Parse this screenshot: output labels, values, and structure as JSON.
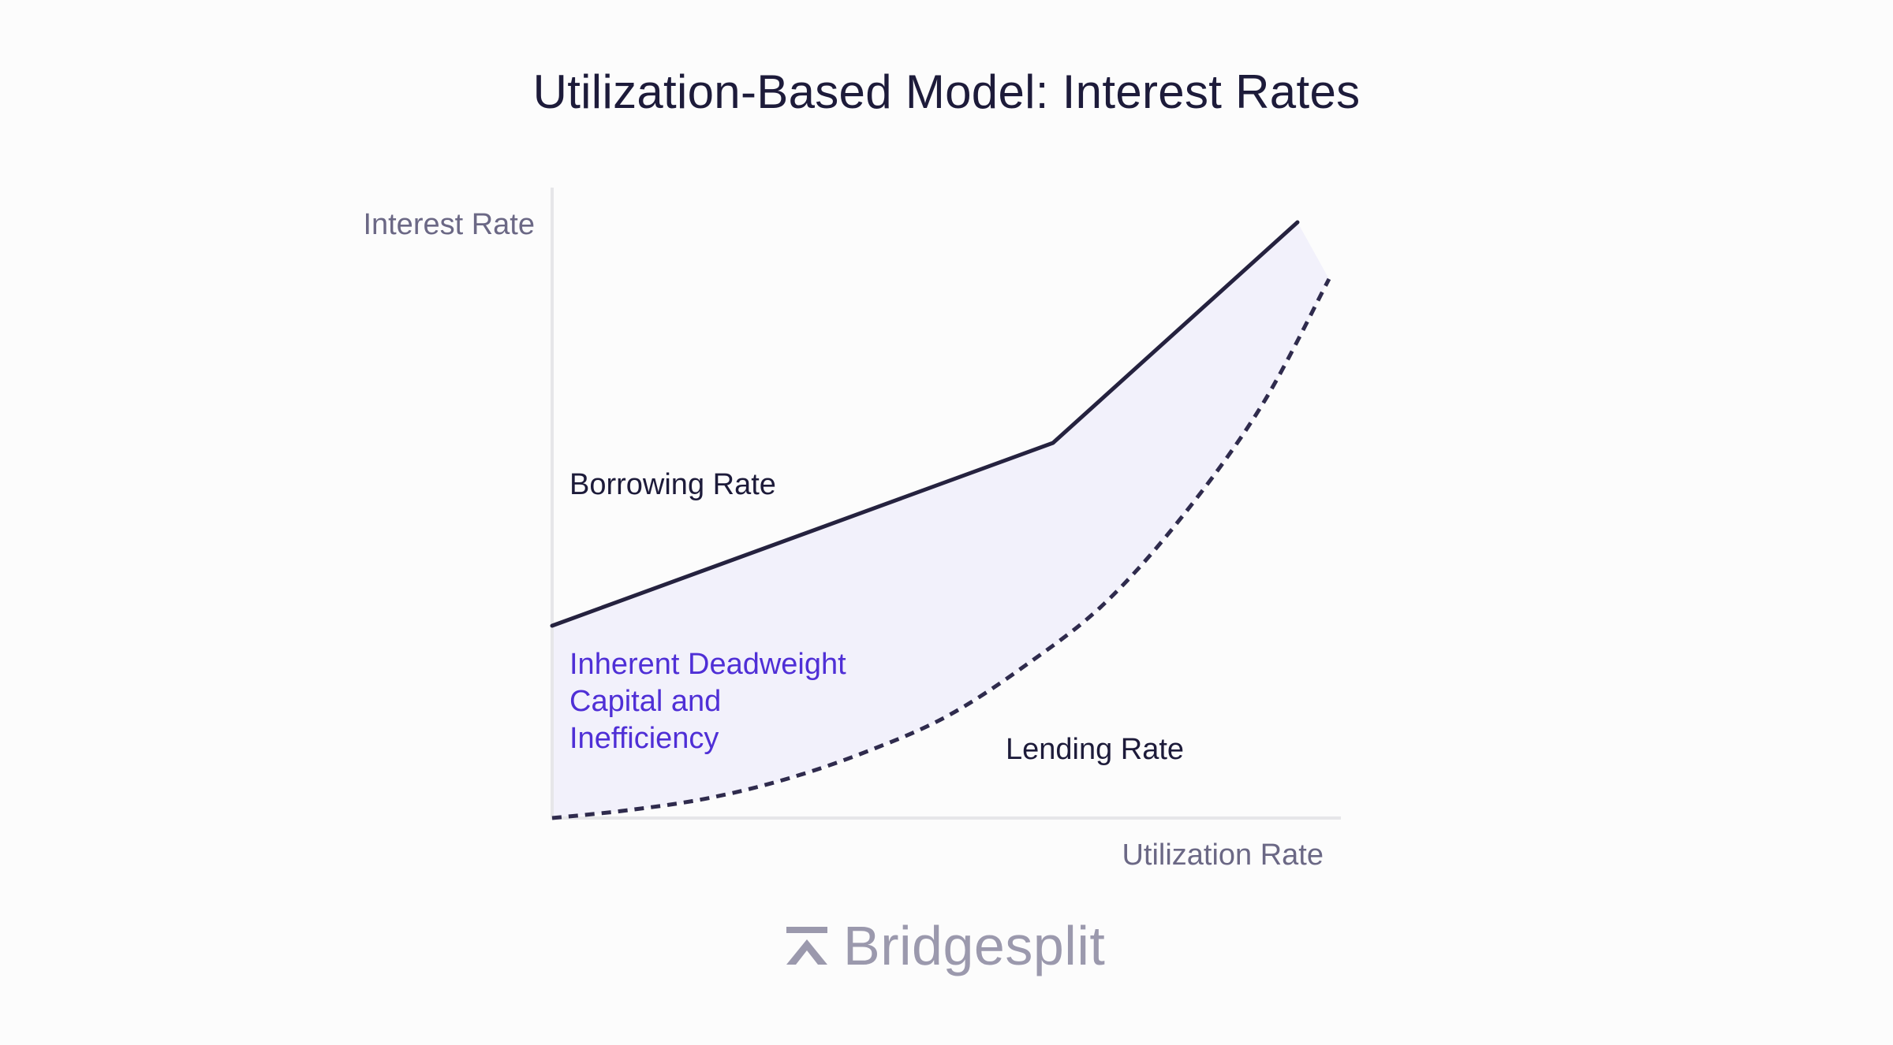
{
  "title": "Utilization-Based Model: Interest Rates",
  "brand": {
    "name": "Bridgesplit",
    "logo_icon": "bridgesplit-logo-icon"
  },
  "colors": {
    "background": "#fcfcfc",
    "title": "#1d1b3a",
    "borrowing_line": "#25223f",
    "lending_line": "#2f2b4d",
    "deadweight_fill": "#f2f1fb",
    "deadweight_label": "#4f2fd6",
    "axis_label": "#6b6885",
    "axis_line": "#e6e6e9",
    "brand": "#9b99ad"
  },
  "chart_data": {
    "type": "line",
    "title": "Utilization-Based Model: Interest Rates",
    "xlabel": "Utilization Rate",
    "ylabel": "Interest Rate",
    "xlim": [
      0,
      100
    ],
    "ylim": [
      0,
      100
    ],
    "grid": false,
    "legend": "none",
    "series": [
      {
        "name": "Borrowing Rate",
        "style": "solid",
        "x": [
          0,
          63.5,
          94.5
        ],
        "y": [
          30.5,
          59.5,
          94.5
        ]
      },
      {
        "name": "Lending Rate",
        "style": "dashed",
        "x": [
          0,
          10,
          20,
          30,
          40,
          50,
          60,
          70,
          80,
          90,
          98.5
        ],
        "y": [
          0,
          1.3,
          3.2,
          6.3,
          10.6,
          16.1,
          24.2,
          34.0,
          48.0,
          65.5,
          85.5
        ]
      }
    ],
    "annotations": [
      {
        "text": "Borrowing Rate",
        "anchor": "above-borrowing-line"
      },
      {
        "text": "Lending Rate",
        "anchor": "below-lending-curve"
      },
      {
        "text": "Inherent Deadweight Capital and Inefficiency",
        "lines": [
          "Inherent Deadweight",
          "Capital and",
          "Inefficiency"
        ],
        "anchor": "shaded-region-between-series"
      }
    ]
  }
}
